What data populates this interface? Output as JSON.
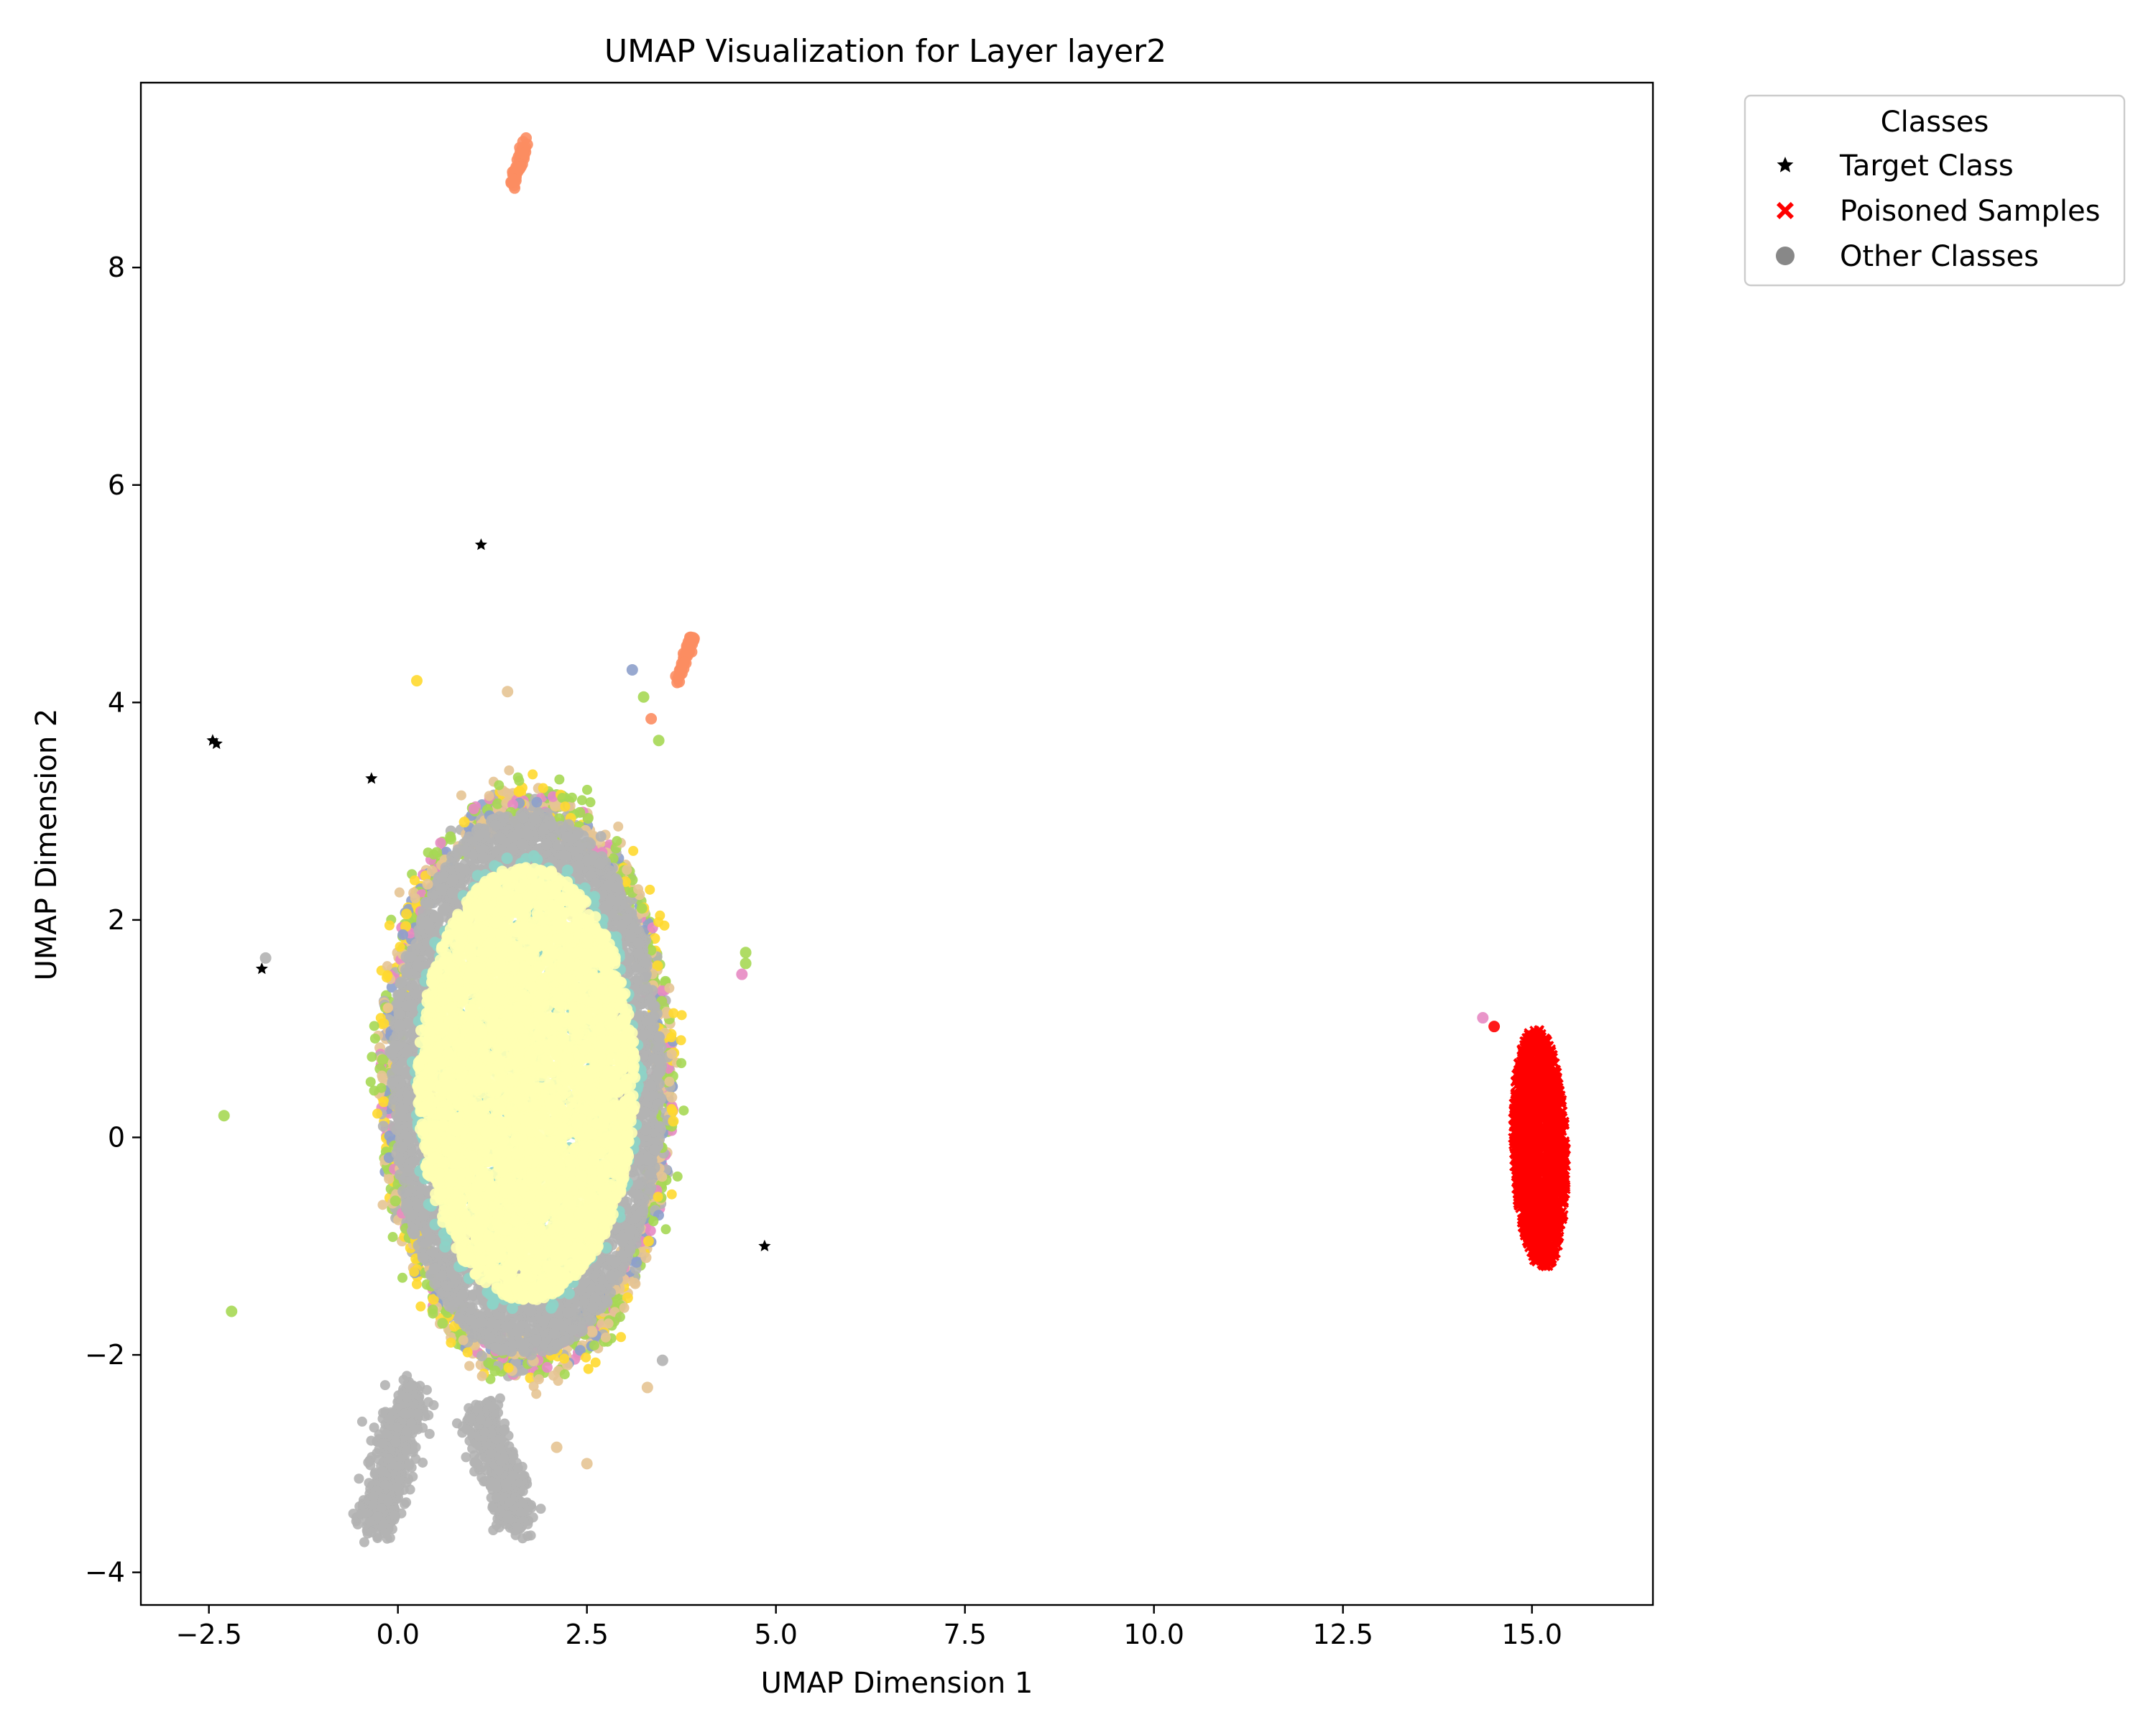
{
  "chart_data": {
    "type": "scatter",
    "title": "UMAP Visualization for Layer layer2",
    "xlabel": "UMAP Dimension 1",
    "ylabel": "UMAP Dimension 2",
    "xlim": [
      -3.4,
      16.6
    ],
    "ylim": [
      -4.3,
      9.7
    ],
    "xticks": [
      -2.5,
      0.0,
      2.5,
      5.0,
      7.5,
      10.0,
      12.5,
      15.0
    ],
    "xtick_labels": [
      "−2.5",
      "0.0",
      "2.5",
      "5.0",
      "7.5",
      "10.0",
      "12.5",
      "15.0"
    ],
    "yticks": [
      -4,
      -2,
      0,
      2,
      4,
      6,
      8
    ],
    "ytick_labels": [
      "−4",
      "−2",
      "0",
      "2",
      "4",
      "6",
      "8"
    ],
    "grid": false,
    "legend": {
      "title": "Classes",
      "placement": "outside-top-right",
      "entries": [
        {
          "label": "Target Class",
          "marker": "star",
          "color": "#000000"
        },
        {
          "label": "Poisoned Samples",
          "marker": "x",
          "color": "#ff0000"
        },
        {
          "label": "Other Classes",
          "marker": "circle",
          "color": "#888888"
        }
      ]
    },
    "palette": [
      "#8dd3c7",
      "#ffffb3",
      "#b3b3b3",
      "#e5c494",
      "#a6d854",
      "#ffd92f",
      "#fc8d62",
      "#8da0cb",
      "#e78ac3"
    ],
    "clusters": [
      {
        "name": "main-cluster",
        "center": [
          1.7,
          0.5
        ],
        "spread": [
          1.8,
          2.5
        ],
        "class_mix": "all"
      },
      {
        "name": "poisoned-cluster",
        "center": [
          15.1,
          -0.1
        ],
        "spread": [
          0.35,
          1.1
        ],
        "color": "#ff0000",
        "marker": "x"
      },
      {
        "name": "gray-tail-left",
        "from": [
          0.2,
          -2.3
        ],
        "to": [
          -0.3,
          -3.6
        ],
        "color": "#b3b3b3"
      },
      {
        "name": "gray-tail-right",
        "from": [
          1.1,
          -2.5
        ],
        "to": [
          1.6,
          -3.6
        ],
        "color": "#b3b3b3"
      },
      {
        "name": "orange-top",
        "center": [
          1.6,
          8.95
        ],
        "spread": [
          0.05,
          0.1
        ],
        "color": "#fc8d62"
      },
      {
        "name": "orange-mid",
        "center": [
          3.8,
          4.4
        ],
        "spread": [
          0.05,
          0.1
        ],
        "color": "#fc8d62"
      }
    ],
    "target_points": [
      [
        1.1,
        5.45
      ],
      [
        -2.45,
        3.65
      ],
      [
        -2.4,
        3.62
      ],
      [
        4.85,
        -1.0
      ],
      [
        -1.8,
        1.55
      ],
      [
        -0.35,
        3.3
      ]
    ],
    "outlier_points": [
      {
        "x": 0.25,
        "y": 4.2,
        "color": "#ffd92f"
      },
      {
        "x": 3.1,
        "y": 4.3,
        "color": "#8da0cb"
      },
      {
        "x": 1.45,
        "y": 4.1,
        "color": "#e5c494"
      },
      {
        "x": 3.25,
        "y": 4.05,
        "color": "#a6d854"
      },
      {
        "x": 3.35,
        "y": 3.85,
        "color": "#fc8d62"
      },
      {
        "x": 3.45,
        "y": 3.65,
        "color": "#a6d854"
      },
      {
        "x": -1.75,
        "y": 1.65,
        "color": "#b3b3b3"
      },
      {
        "x": -2.3,
        "y": 0.2,
        "color": "#a6d854"
      },
      {
        "x": -2.2,
        "y": -1.6,
        "color": "#a6d854"
      },
      {
        "x": 4.55,
        "y": 1.5,
        "color": "#e78ac3"
      },
      {
        "x": 4.6,
        "y": 1.7,
        "color": "#a6d854"
      },
      {
        "x": 4.6,
        "y": 1.6,
        "color": "#a6d854"
      },
      {
        "x": 3.3,
        "y": -2.3,
        "color": "#e5c494"
      },
      {
        "x": 2.5,
        "y": -3.0,
        "color": "#e5c494"
      },
      {
        "x": 2.1,
        "y": -2.85,
        "color": "#e5c494"
      },
      {
        "x": 3.5,
        "y": -2.05,
        "color": "#b3b3b3"
      },
      {
        "x": 14.35,
        "y": 1.1,
        "color": "#e78ac3"
      },
      {
        "x": 14.5,
        "y": 1.02,
        "color": "#ff0000"
      }
    ]
  }
}
